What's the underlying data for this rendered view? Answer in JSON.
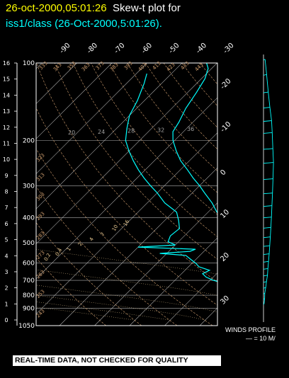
{
  "header": {
    "timestamp": "26-oct-2000,05:01:26",
    "plot_label": "Skew-t plot for",
    "subtitle": "iss1/class (26-Oct-2000,5:01:26)."
  },
  "winds": {
    "title": "WINDS PROFILE",
    "scale": "— = 10 M/"
  },
  "disclaimer": "REAL-TIME DATA, NOT CHECKED FOR QUALITY",
  "colors": {
    "timestamp": "#ffff00",
    "sounding": "#00ffff",
    "axes": "#ffffff",
    "isobars": "#b0b0b0",
    "dry_adiabats": "#d2a070",
    "moist_adiabats": "#e8c890",
    "mixing_ratio": "#a0a0a0"
  },
  "chart_data": {
    "type": "line",
    "title": "Skew-t plot for iss1/class (26-Oct-2000,5:01:26).",
    "pressure_ticks": [
      "100",
      "200",
      "300",
      "400",
      "500",
      "600",
      "700",
      "800",
      "900",
      "1050"
    ],
    "pressure_values": [
      100,
      200,
      300,
      400,
      500,
      600,
      700,
      800,
      900,
      1050
    ],
    "height_ticks": [
      "0",
      "1",
      "2",
      "3",
      "4",
      "5",
      "6",
      "7",
      "8",
      "9",
      "10",
      "11",
      "12",
      "13",
      "14",
      "15",
      "16"
    ],
    "temperature_ticks": [
      "-90",
      "-80",
      "-70",
      "-60",
      "-50",
      "-40",
      "-30",
      "-20",
      "-10",
      "0",
      "10",
      "20",
      "30"
    ],
    "temperature_values": [
      -90,
      -80,
      -70,
      -60,
      -50,
      -40,
      -30,
      -20,
      -10,
      0,
      10,
      20,
      30
    ],
    "mixing_ratio_labels": [
      "20",
      "24",
      "28",
      "32",
      "36"
    ],
    "mixing_ratio_values": [
      20,
      24,
      28,
      32,
      36
    ],
    "dry_adiabat_labels": [
      "243",
      "253",
      "263",
      "273",
      "283",
      "293",
      "303",
      "313",
      "323",
      "333",
      "343",
      "353",
      "363",
      "373",
      "383",
      "393",
      "403",
      "413",
      "423",
      "433",
      "443"
    ],
    "moist_adiabat_labels": [
      "0.2",
      "0.4",
      "1",
      "2",
      "4",
      "7",
      "10",
      "16"
    ],
    "ylim": [
      1050,
      100
    ],
    "xlim": [
      -40,
      40
    ],
    "series": [
      {
        "name": "",
        "points": [
          {
            "p": 900,
            "t": 11.0
          },
          {
            "p": 870,
            "t": 12.0
          },
          {
            "p": 850,
            "t": 13.5
          },
          {
            "p": 830,
            "t": 11.0
          },
          {
            "p": 800,
            "t": 9.0
          },
          {
            "p": 760,
            "t": 5.5
          },
          {
            "p": 720,
            "t": 3.0
          },
          {
            "p": 690,
            "t": 1.0
          },
          {
            "p": 660,
            "t": -2.0
          },
          {
            "p": 620,
            "t": -5.0
          },
          {
            "p": 590,
            "t": -7.5
          },
          {
            "p": 560,
            "t": -8.5
          },
          {
            "p": 530,
            "t": -11.0
          },
          {
            "p": 500,
            "t": -14.5
          },
          {
            "p": 470,
            "t": -17.5
          },
          {
            "p": 440,
            "t": -19.5
          },
          {
            "p": 410,
            "t": -23.0
          },
          {
            "p": 380,
            "t": -27.5
          },
          {
            "p": 350,
            "t": -31.5
          },
          {
            "p": 320,
            "t": -36.5
          },
          {
            "p": 300,
            "t": -40.0
          },
          {
            "p": 280,
            "t": -44.0
          },
          {
            "p": 260,
            "t": -48.0
          },
          {
            "p": 240,
            "t": -52.5
          },
          {
            "p": 220,
            "t": -56.5
          },
          {
            "p": 200,
            "t": -60.5
          },
          {
            "p": 185,
            "t": -63.0
          },
          {
            "p": 170,
            "t": -64.0
          },
          {
            "p": 150,
            "t": -66.0
          },
          {
            "p": 130,
            "t": -67.5
          },
          {
            "p": 115,
            "t": -69.0
          },
          {
            "p": 105,
            "t": -71.0
          },
          {
            "p": 100,
            "t": -73.0
          }
        ]
      },
      {
        "name": "",
        "points": [
          {
            "p": 900,
            "t": 2.5
          },
          {
            "p": 870,
            "t": 3.5
          },
          {
            "p": 840,
            "t": 2.0
          },
          {
            "p": 810,
            "t": 0.5
          },
          {
            "p": 780,
            "t": -1.0
          },
          {
            "p": 760,
            "t": -4.0
          },
          {
            "p": 740,
            "t": -3.0
          },
          {
            "p": 720,
            "t": -5.0
          },
          {
            "p": 700,
            "t": -9.0
          },
          {
            "p": 680,
            "t": -12.0
          },
          {
            "p": 660,
            "t": -14.0
          },
          {
            "p": 640,
            "t": -13.0
          },
          {
            "p": 620,
            "t": -17.0
          },
          {
            "p": 600,
            "t": -19.0
          },
          {
            "p": 580,
            "t": -21.5
          },
          {
            "p": 560,
            "t": -24.0
          },
          {
            "p": 550,
            "t": -32.0
          },
          {
            "p": 540,
            "t": -24.0
          },
          {
            "p": 530,
            "t": -23.0
          },
          {
            "p": 520,
            "t": -40.0
          },
          {
            "p": 510,
            "t": -30.0
          },
          {
            "p": 495,
            "t": -33.0
          },
          {
            "p": 470,
            "t": -34.0
          },
          {
            "p": 440,
            "t": -33.5
          },
          {
            "p": 410,
            "t": -36.0
          },
          {
            "p": 380,
            "t": -39.0
          },
          {
            "p": 350,
            "t": -45.0
          },
          {
            "p": 320,
            "t": -50.0
          },
          {
            "p": 300,
            "t": -54.0
          },
          {
            "p": 280,
            "t": -58.0
          },
          {
            "p": 260,
            "t": -62.0
          },
          {
            "p": 240,
            "t": -66.0
          },
          {
            "p": 220,
            "t": -70.0
          },
          {
            "p": 200,
            "t": -74.0
          },
          {
            "p": 180,
            "t": -77.0
          },
          {
            "p": 160,
            "t": -80.0
          },
          {
            "p": 140,
            "t": -82.0
          },
          {
            "p": 120,
            "t": -85.0
          },
          {
            "p": 110,
            "t": -87.0
          }
        ]
      }
    ],
    "wind_profile": [
      {
        "p": 900,
        "speed_ms": 3.0,
        "dir_deg": 200
      },
      {
        "p": 860,
        "speed_ms": 4.0,
        "dir_deg": 210
      },
      {
        "p": 820,
        "speed_ms": 3.5,
        "dir_deg": 220
      },
      {
        "p": 780,
        "speed_ms": 5.0,
        "dir_deg": 230
      },
      {
        "p": 740,
        "speed_ms": 6.0,
        "dir_deg": 240
      },
      {
        "p": 700,
        "speed_ms": 7.5,
        "dir_deg": 250
      },
      {
        "p": 660,
        "speed_ms": 8.0,
        "dir_deg": 255
      },
      {
        "p": 620,
        "speed_ms": 9.0,
        "dir_deg": 260
      },
      {
        "p": 580,
        "speed_ms": 10.0,
        "dir_deg": 265
      },
      {
        "p": 540,
        "speed_ms": 11.0,
        "dir_deg": 268
      },
      {
        "p": 500,
        "speed_ms": 12.0,
        "dir_deg": 270
      },
      {
        "p": 460,
        "speed_ms": 13.0,
        "dir_deg": 272
      },
      {
        "p": 420,
        "speed_ms": 14.0,
        "dir_deg": 274
      },
      {
        "p": 380,
        "speed_ms": 15.0,
        "dir_deg": 276
      },
      {
        "p": 340,
        "speed_ms": 16.0,
        "dir_deg": 278
      },
      {
        "p": 300,
        "speed_ms": 17.0,
        "dir_deg": 280
      },
      {
        "p": 260,
        "speed_ms": 18.0,
        "dir_deg": 282
      },
      {
        "p": 230,
        "speed_ms": 17.0,
        "dir_deg": 284
      },
      {
        "p": 200,
        "speed_ms": 16.0,
        "dir_deg": 286
      },
      {
        "p": 180,
        "speed_ms": 15.0,
        "dir_deg": 288
      },
      {
        "p": 160,
        "speed_ms": 12.0,
        "dir_deg": 290
      },
      {
        "p": 140,
        "speed_ms": 9.0,
        "dir_deg": 292
      },
      {
        "p": 120,
        "speed_ms": 6.0,
        "dir_deg": 294
      },
      {
        "p": 105,
        "speed_ms": 3.0,
        "dir_deg": 296
      }
    ]
  }
}
